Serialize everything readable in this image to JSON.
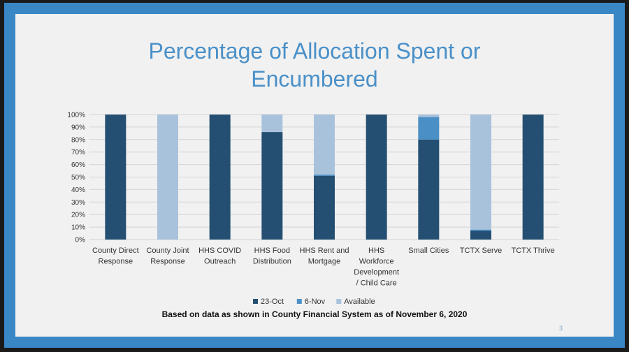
{
  "slide": {
    "title_line1": "Percentage of Allocation Spent or",
    "title_line2": "Encumbered",
    "footnote": "Based on data as shown in County Financial System as of November 6, 2020",
    "page_number": "3"
  },
  "colors": {
    "border": "#3a87c6",
    "title": "#4a90c8",
    "series_23oct": "#244f72",
    "series_6nov": "#4a8fc6",
    "series_available": "#a9c2dc"
  },
  "chart_data": {
    "type": "bar",
    "stacked": true,
    "title": "Percentage of Allocation Spent or Encumbered",
    "xlabel": "",
    "ylabel": "",
    "ylim": [
      0,
      100
    ],
    "y_ticks": [
      "0%",
      "10%",
      "20%",
      "30%",
      "40%",
      "50%",
      "60%",
      "70%",
      "80%",
      "90%",
      "100%"
    ],
    "grid": true,
    "legend_position": "bottom",
    "categories": [
      [
        "County Direct",
        "Response"
      ],
      [
        "County Joint",
        "Response"
      ],
      [
        "HHS COVID",
        "Outreach"
      ],
      [
        "HHS Food",
        "Distribution"
      ],
      [
        "HHS Rent and",
        "Mortgage"
      ],
      [
        "HHS",
        "Workforce",
        "Development",
        "/ Child Care"
      ],
      [
        "Small Cities"
      ],
      [
        "TCTX Serve"
      ],
      [
        "TCTX Thrive"
      ]
    ],
    "series": [
      {
        "name": "23-Oct",
        "color": "#244f72",
        "values": [
          100,
          0,
          100,
          86,
          51,
          100,
          80,
          7,
          100
        ]
      },
      {
        "name": "6-Nov",
        "color": "#4a8fc6",
        "values": [
          0,
          0,
          0,
          0,
          1,
          0,
          18,
          1,
          0
        ]
      },
      {
        "name": "Available",
        "color": "#a9c2dc",
        "values": [
          0,
          100,
          0,
          14,
          48,
          0,
          2,
          92,
          0
        ]
      }
    ]
  }
}
